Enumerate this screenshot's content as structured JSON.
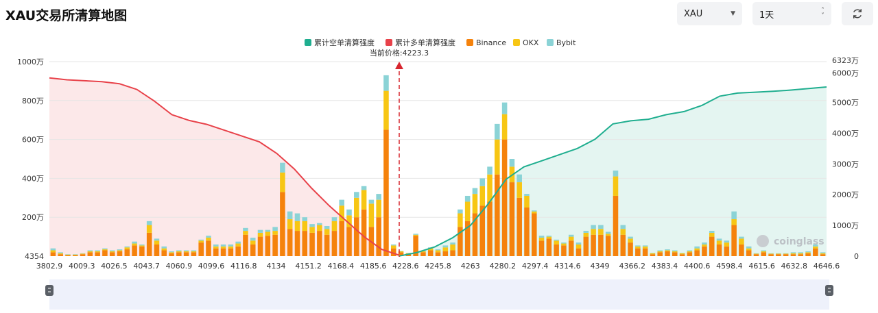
{
  "header": {
    "title": "XAU交易所清算地图",
    "symbol_select": "XAU",
    "range_select": "1天"
  },
  "watermark": "coinglass",
  "colors": {
    "short_cum": "#1fae8f",
    "long_cum": "#e8424a",
    "binance": "#f5820c",
    "okx": "#f7c614",
    "bybit": "#8bd3d6"
  },
  "chart_data": {
    "type": "bar",
    "current_price_label": "当前价格:4223.3",
    "legend": [
      "累计空单清算强度",
      "累计多单清算强度",
      "Binance",
      "OKX",
      "Bybit"
    ],
    "y_left": {
      "ticks": [
        "4354",
        "200万",
        "400万",
        "600万",
        "800万",
        "1000万"
      ],
      "range": [
        0,
        10000000
      ]
    },
    "y_right": {
      "ticks": [
        "0",
        "1000万",
        "2000万",
        "3000万",
        "4000万",
        "5000万",
        "6000万",
        "6323万"
      ],
      "range": [
        0,
        63230000
      ]
    },
    "x_ticks": [
      "3802.9",
      "4009.3",
      "4026.5",
      "4043.7",
      "4060.9",
      "4099.6",
      "4116.8",
      "4134",
      "4151.2",
      "4168.4",
      "4185.6",
      "4228.6",
      "4245.8",
      "4263",
      "4280.2",
      "4297.4",
      "4314.6",
      "4349",
      "4366.2",
      "4383.4",
      "4400.6",
      "4598.4",
      "4615.6",
      "4632.8",
      "4646.6"
    ],
    "series": [
      {
        "name": "Binance",
        "values": [
          20,
          10,
          5,
          5,
          10,
          20,
          20,
          30,
          20,
          25,
          35,
          55,
          50,
          120,
          60,
          30,
          15,
          20,
          20,
          20,
          70,
          80,
          40,
          40,
          40,
          50,
          110,
          60,
          100,
          105,
          110,
          330,
          140,
          130,
          130,
          120,
          130,
          110,
          130,
          180,
          150,
          200,
          240,
          150,
          200,
          650,
          40,
          20,
          10,
          105,
          20,
          30,
          20,
          25,
          30,
          150,
          180,
          220,
          260,
          280,
          420,
          600,
          380,
          300,
          250,
          220,
          80,
          90,
          60,
          55,
          80,
          40,
          100,
          110,
          110,
          105,
          310,
          110,
          70,
          40,
          40,
          10,
          20,
          25,
          20,
          10,
          20,
          30,
          50,
          100,
          60,
          50,
          160,
          60,
          30,
          10,
          20,
          10,
          10,
          10,
          10,
          10,
          15,
          40,
          10
        ]
      },
      {
        "name": "OKX",
        "values": [
          10,
          5,
          3,
          3,
          3,
          5,
          5,
          5,
          5,
          5,
          10,
          10,
          5,
          40,
          20,
          10,
          5,
          5,
          5,
          5,
          10,
          15,
          10,
          10,
          10,
          15,
          20,
          20,
          20,
          20,
          20,
          100,
          50,
          50,
          50,
          30,
          30,
          30,
          50,
          80,
          60,
          100,
          100,
          120,
          90,
          200,
          15,
          5,
          5,
          5,
          5,
          10,
          10,
          20,
          30,
          70,
          100,
          100,
          100,
          140,
          180,
          130,
          80,
          80,
          60,
          10,
          15,
          10,
          20,
          10,
          20,
          20,
          20,
          30,
          30,
          10,
          100,
          30,
          20,
          10,
          10,
          5,
          5,
          5,
          5,
          5,
          5,
          10,
          10,
          20,
          20,
          20,
          30,
          30,
          10,
          3,
          5,
          3,
          3,
          3,
          5,
          5,
          5,
          10,
          5
        ]
      },
      {
        "name": "Bybit",
        "values": [
          10,
          5,
          2,
          2,
          2,
          5,
          5,
          5,
          5,
          5,
          5,
          10,
          5,
          20,
          10,
          10,
          5,
          5,
          5,
          5,
          5,
          10,
          10,
          10,
          10,
          10,
          15,
          15,
          15,
          10,
          20,
          50,
          40,
          40,
          20,
          15,
          10,
          15,
          20,
          30,
          30,
          30,
          20,
          20,
          30,
          80,
          5,
          2,
          2,
          5,
          2,
          5,
          5,
          10,
          10,
          20,
          30,
          30,
          40,
          40,
          80,
          60,
          40,
          40,
          10,
          5,
          10,
          5,
          5,
          5,
          10,
          10,
          10,
          20,
          20,
          10,
          30,
          20,
          10,
          5,
          5,
          2,
          5,
          5,
          5,
          2,
          5,
          10,
          10,
          10,
          10,
          10,
          40,
          10,
          10,
          2,
          5,
          2,
          2,
          2,
          5,
          5,
          5,
          10,
          5
        ]
      }
    ],
    "long_cumulative_mln": [
      9.2,
      9.1,
      9.05,
      9.0,
      8.9,
      8.6,
      8.0,
      7.3,
      7.0,
      6.8,
      6.5,
      6.2,
      5.9,
      5.3,
      4.5,
      3.5,
      2.6,
      1.8,
      1.0,
      0.35,
      0.05
    ],
    "short_cumulative_mln": [
      0.05,
      1.2,
      3.0,
      6.0,
      10.0,
      17.0,
      25.0,
      29.0,
      31.0,
      33.0,
      35.0,
      38.0,
      43.0,
      44.0,
      44.5,
      46.0,
      47.0,
      49.0,
      52.0,
      53.0,
      53.3,
      53.6,
      54.0,
      54.5,
      55.0
    ]
  }
}
